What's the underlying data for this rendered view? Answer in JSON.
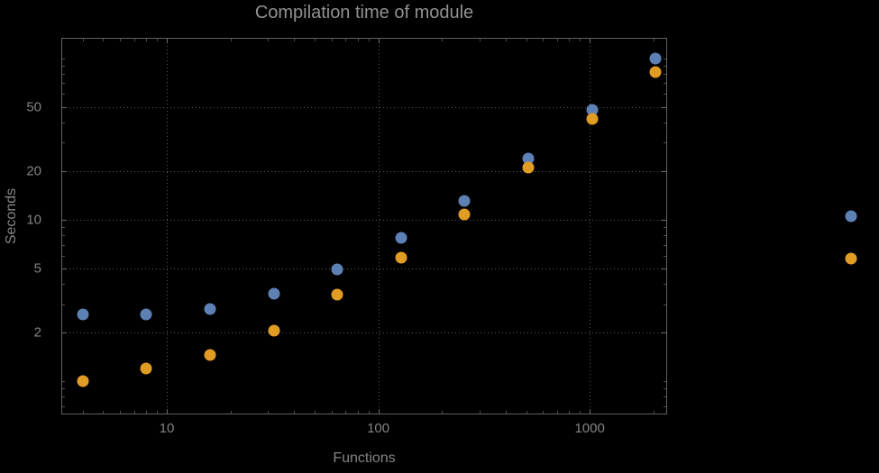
{
  "chart_data": {
    "type": "scatter",
    "title": "Compilation time of module",
    "xlabel": "Functions",
    "ylabel": "Seconds",
    "x_scale": "log",
    "y_scale": "log",
    "xlim": [
      3.2,
      2300
    ],
    "ylim": [
      0.63,
      132
    ],
    "x_ticks": [
      10,
      100,
      1000
    ],
    "y_ticks": [
      2,
      5,
      10,
      20,
      50
    ],
    "grid": "dotted",
    "legend_position": "right-outside",
    "x": [
      4,
      8,
      16,
      32,
      64,
      128,
      256,
      512,
      1024,
      2048
    ],
    "series": [
      {
        "name": "blue",
        "color": "#5e81b5",
        "values": [
          2.6,
          2.6,
          2.8,
          3.5,
          4.9,
          7.7,
          13,
          24,
          48,
          100
        ]
      },
      {
        "name": "orange",
        "color": "#e19c24",
        "values": [
          1.0,
          1.2,
          1.45,
          2.05,
          3.45,
          5.8,
          10.8,
          21,
          42,
          82
        ]
      }
    ],
    "legend_markers": [
      {
        "series": "blue",
        "color": "#5e81b5"
      },
      {
        "series": "orange",
        "color": "#e19c24"
      }
    ]
  },
  "colors": {
    "background": "#000000",
    "frame": "#606060",
    "grid": "#5c5c5c",
    "text": "#848484",
    "series_1": "#5e81b5",
    "series_2": "#e19c24"
  }
}
